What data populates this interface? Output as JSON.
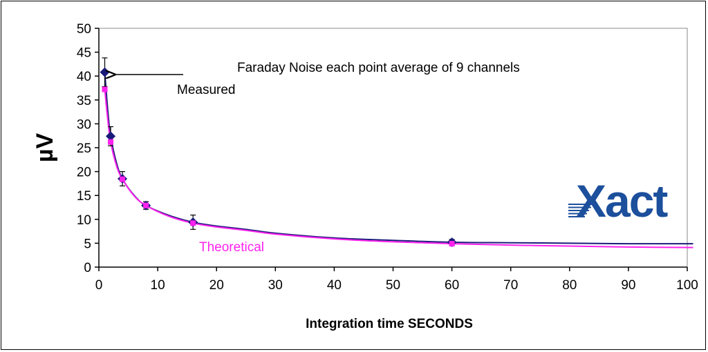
{
  "chart_data": {
    "type": "line",
    "title": "Faraday Noise each point average of 9 channels",
    "xlabel": "Integration time SECONDS",
    "ylabel": "µV",
    "xlim": [
      0,
      100
    ],
    "ylim": [
      0,
      50
    ],
    "xticks": [
      0,
      10,
      20,
      30,
      40,
      50,
      60,
      70,
      80,
      90,
      100
    ],
    "yticks": [
      0,
      5,
      10,
      15,
      20,
      25,
      30,
      35,
      40,
      45,
      50
    ],
    "grid": false,
    "series": [
      {
        "name": "Measured",
        "color": "#1a1a7a",
        "marker": "diamond",
        "points": [
          {
            "x": 1,
            "y": 40.8,
            "err": 3.0
          },
          {
            "x": 2,
            "y": 27.4,
            "err": 2.0
          },
          {
            "x": 4,
            "y": 18.5,
            "err": 1.5
          },
          {
            "x": 8,
            "y": 12.9,
            "err": 0.8
          },
          {
            "x": 16,
            "y": 9.4,
            "err": 1.5
          },
          {
            "x": 60,
            "y": 5.2,
            "err": 0.6
          }
        ],
        "curve": [
          [
            1,
            40.8
          ],
          [
            1.5,
            33
          ],
          [
            2,
            27.4
          ],
          [
            3,
            21.8
          ],
          [
            4,
            18.5
          ],
          [
            6,
            15.0
          ],
          [
            8,
            12.9
          ],
          [
            12,
            10.8
          ],
          [
            16,
            9.4
          ],
          [
            20,
            8.6
          ],
          [
            25,
            7.9
          ],
          [
            30,
            7.1
          ],
          [
            40,
            6.1
          ],
          [
            50,
            5.6
          ],
          [
            60,
            5.2
          ],
          [
            70,
            5.1
          ],
          [
            80,
            5.0
          ],
          [
            90,
            4.9
          ],
          [
            101,
            4.9
          ]
        ]
      },
      {
        "name": "Theoretical",
        "color": "#ff22ee",
        "marker": "square",
        "points": [
          {
            "x": 1,
            "y": 37.2
          },
          {
            "x": 2,
            "y": 26.2
          },
          {
            "x": 4,
            "y": 18.4
          },
          {
            "x": 8,
            "y": 12.9
          },
          {
            "x": 16,
            "y": 9.2
          },
          {
            "x": 60,
            "y": 4.9
          }
        ],
        "curve": [
          [
            1,
            37.2
          ],
          [
            1.5,
            31
          ],
          [
            2,
            26.2
          ],
          [
            3,
            21.2
          ],
          [
            4,
            18.4
          ],
          [
            6,
            14.9
          ],
          [
            8,
            12.9
          ],
          [
            12,
            10.6
          ],
          [
            16,
            9.2
          ],
          [
            20,
            8.4
          ],
          [
            25,
            7.7
          ],
          [
            30,
            6.9
          ],
          [
            40,
            5.9
          ],
          [
            50,
            5.3
          ],
          [
            60,
            4.9
          ],
          [
            70,
            4.6
          ],
          [
            80,
            4.4
          ],
          [
            90,
            4.2
          ],
          [
            101,
            4.1
          ]
        ]
      }
    ],
    "annotations": [
      {
        "text": "Measured",
        "arrow_to_x": 1,
        "arrow_to_y": 40.8
      },
      {
        "text": "Theoretical"
      }
    ]
  },
  "logo": {
    "text": "Xact",
    "color": "#1c4f9c"
  }
}
